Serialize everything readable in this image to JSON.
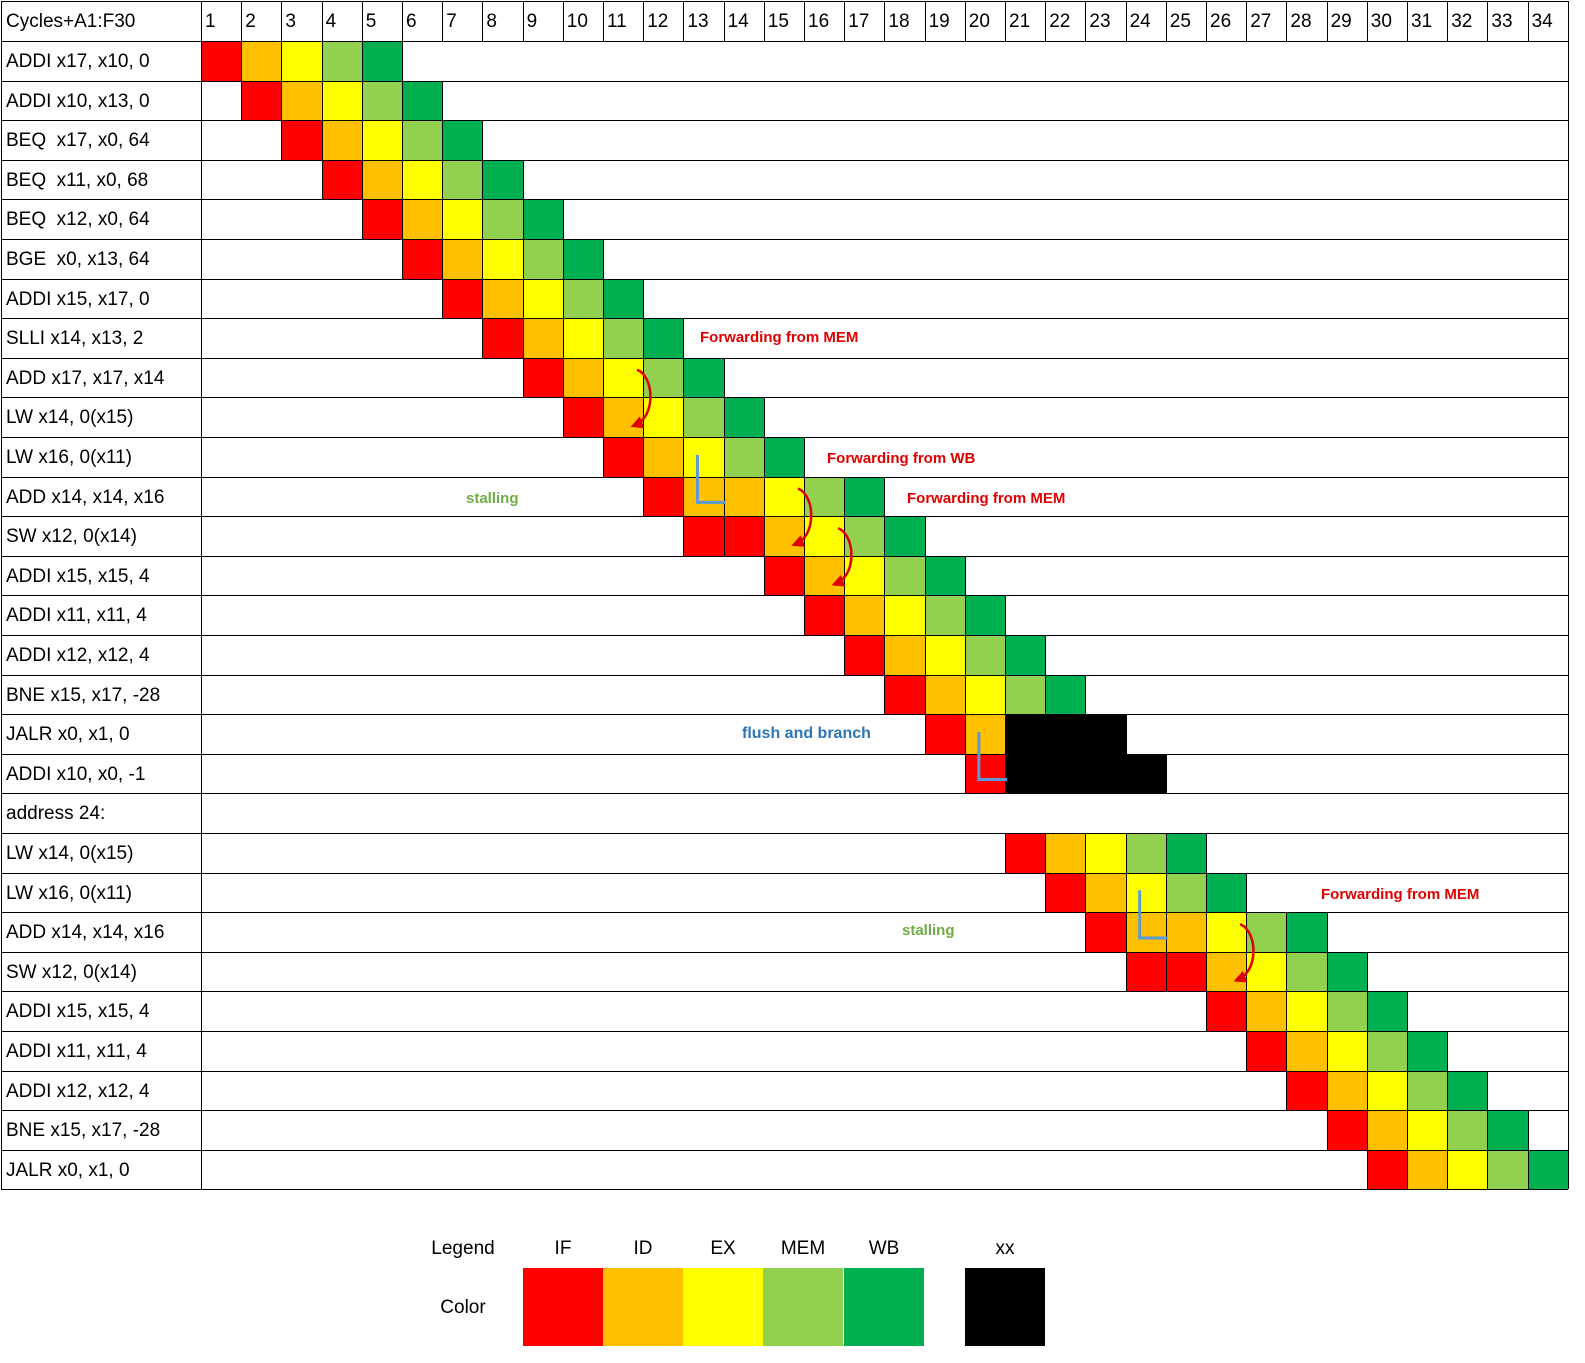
{
  "header_label": "Cycles+A1:F30",
  "cycles": [
    "1",
    "2",
    "3",
    "4",
    "5",
    "6",
    "7",
    "8",
    "9",
    "10",
    "11",
    "12",
    "13",
    "14",
    "15",
    "16",
    "17",
    "18",
    "19",
    "20",
    "21",
    "22",
    "23",
    "24",
    "25",
    "26",
    "27",
    "28",
    "29",
    "30",
    "31",
    "32",
    "33",
    "34"
  ],
  "colors": {
    "IF": "#ff0000",
    "ID": "#ffc000",
    "EX": "#ffff00",
    "MEM": "#92d050",
    "WB": "#00b050",
    "xx": "#000000",
    "forward_arrow": "#e00000",
    "stall_marker": "#5b9bd5",
    "stalling_text": "#70ad47",
    "flush_text": "#2e75b6"
  },
  "instructions": [
    {
      "label": "ADDI x17, x10, 0",
      "stages": [
        [
          1,
          "IF"
        ],
        [
          2,
          "ID"
        ],
        [
          3,
          "EX"
        ],
        [
          4,
          "MEM"
        ],
        [
          5,
          "WB"
        ]
      ]
    },
    {
      "label": "ADDI x10, x13, 0",
      "stages": [
        [
          2,
          "IF"
        ],
        [
          3,
          "ID"
        ],
        [
          4,
          "EX"
        ],
        [
          5,
          "MEM"
        ],
        [
          6,
          "WB"
        ]
      ]
    },
    {
      "label": "BEQ  x17, x0, 64",
      "stages": [
        [
          3,
          "IF"
        ],
        [
          4,
          "ID"
        ],
        [
          5,
          "EX"
        ],
        [
          6,
          "MEM"
        ],
        [
          7,
          "WB"
        ]
      ]
    },
    {
      "label": "BEQ  x11, x0, 68",
      "stages": [
        [
          4,
          "IF"
        ],
        [
          5,
          "ID"
        ],
        [
          6,
          "EX"
        ],
        [
          7,
          "MEM"
        ],
        [
          8,
          "WB"
        ]
      ]
    },
    {
      "label": "BEQ  x12, x0, 64",
      "stages": [
        [
          5,
          "IF"
        ],
        [
          6,
          "ID"
        ],
        [
          7,
          "EX"
        ],
        [
          8,
          "MEM"
        ],
        [
          9,
          "WB"
        ]
      ]
    },
    {
      "label": "BGE  x0, x13, 64",
      "stages": [
        [
          6,
          "IF"
        ],
        [
          7,
          "ID"
        ],
        [
          8,
          "EX"
        ],
        [
          9,
          "MEM"
        ],
        [
          10,
          "WB"
        ]
      ]
    },
    {
      "label": "ADDI x15, x17, 0",
      "stages": [
        [
          7,
          "IF"
        ],
        [
          8,
          "ID"
        ],
        [
          9,
          "EX"
        ],
        [
          10,
          "MEM"
        ],
        [
          11,
          "WB"
        ]
      ]
    },
    {
      "label": "SLLI x14, x13, 2",
      "stages": [
        [
          8,
          "IF"
        ],
        [
          9,
          "ID"
        ],
        [
          10,
          "EX"
        ],
        [
          11,
          "MEM"
        ],
        [
          12,
          "WB"
        ]
      ]
    },
    {
      "label": "ADD x17, x17, x14",
      "stages": [
        [
          9,
          "IF"
        ],
        [
          10,
          "ID"
        ],
        [
          11,
          "EX"
        ],
        [
          12,
          "MEM"
        ],
        [
          13,
          "WB"
        ]
      ]
    },
    {
      "label": "LW x14, 0(x15)",
      "stages": [
        [
          10,
          "IF"
        ],
        [
          11,
          "ID"
        ],
        [
          12,
          "EX"
        ],
        [
          13,
          "MEM"
        ],
        [
          14,
          "WB"
        ]
      ]
    },
    {
      "label": "LW x16, 0(x11)",
      "stages": [
        [
          11,
          "IF"
        ],
        [
          12,
          "ID"
        ],
        [
          13,
          "EX"
        ],
        [
          14,
          "MEM"
        ],
        [
          15,
          "WB"
        ]
      ]
    },
    {
      "label": "ADD x14, x14, x16",
      "stages": [
        [
          12,
          "IF"
        ],
        [
          13,
          "ID"
        ],
        [
          14,
          "ID"
        ],
        [
          15,
          "EX"
        ],
        [
          16,
          "MEM"
        ],
        [
          17,
          "WB"
        ]
      ]
    },
    {
      "label": "SW x12, 0(x14)",
      "stages": [
        [
          13,
          "IF"
        ],
        [
          14,
          "IF"
        ],
        [
          15,
          "ID"
        ],
        [
          16,
          "EX"
        ],
        [
          17,
          "MEM"
        ],
        [
          18,
          "WB"
        ]
      ]
    },
    {
      "label": "ADDI x15, x15, 4",
      "stages": [
        [
          15,
          "IF"
        ],
        [
          16,
          "ID"
        ],
        [
          17,
          "EX"
        ],
        [
          18,
          "MEM"
        ],
        [
          19,
          "WB"
        ]
      ]
    },
    {
      "label": "ADDI x11, x11, 4",
      "stages": [
        [
          16,
          "IF"
        ],
        [
          17,
          "ID"
        ],
        [
          18,
          "EX"
        ],
        [
          19,
          "MEM"
        ],
        [
          20,
          "WB"
        ]
      ]
    },
    {
      "label": "ADDI x12, x12, 4",
      "stages": [
        [
          17,
          "IF"
        ],
        [
          18,
          "ID"
        ],
        [
          19,
          "EX"
        ],
        [
          20,
          "MEM"
        ],
        [
          21,
          "WB"
        ]
      ]
    },
    {
      "label": "BNE x15, x17, -28",
      "stages": [
        [
          18,
          "IF"
        ],
        [
          19,
          "ID"
        ],
        [
          20,
          "EX"
        ],
        [
          21,
          "MEM"
        ],
        [
          22,
          "WB"
        ]
      ]
    },
    {
      "label": "JALR x0, x1, 0",
      "stages": [
        [
          19,
          "IF"
        ],
        [
          20,
          "ID"
        ],
        [
          21,
          "xx"
        ],
        [
          22,
          "xx"
        ],
        [
          23,
          "xx"
        ]
      ]
    },
    {
      "label": "ADDI x10, x0, -1",
      "stages": [
        [
          20,
          "IF"
        ],
        [
          21,
          "xx"
        ],
        [
          22,
          "xx"
        ],
        [
          23,
          "xx"
        ],
        [
          24,
          "xx"
        ]
      ]
    },
    {
      "label": "address 24:",
      "stages": []
    },
    {
      "label": "LW x14, 0(x15)",
      "stages": [
        [
          21,
          "IF"
        ],
        [
          22,
          "ID"
        ],
        [
          23,
          "EX"
        ],
        [
          24,
          "MEM"
        ],
        [
          25,
          "WB"
        ]
      ]
    },
    {
      "label": "LW x16, 0(x11)",
      "stages": [
        [
          22,
          "IF"
        ],
        [
          23,
          "ID"
        ],
        [
          24,
          "EX"
        ],
        [
          25,
          "MEM"
        ],
        [
          26,
          "WB"
        ]
      ]
    },
    {
      "label": "ADD x14, x14, x16",
      "stages": [
        [
          23,
          "IF"
        ],
        [
          24,
          "ID"
        ],
        [
          25,
          "ID"
        ],
        [
          26,
          "EX"
        ],
        [
          27,
          "MEM"
        ],
        [
          28,
          "WB"
        ]
      ]
    },
    {
      "label": "SW x12, 0(x14)",
      "stages": [
        [
          24,
          "IF"
        ],
        [
          25,
          "IF"
        ],
        [
          26,
          "ID"
        ],
        [
          27,
          "EX"
        ],
        [
          28,
          "MEM"
        ],
        [
          29,
          "WB"
        ]
      ]
    },
    {
      "label": "ADDI x15, x15, 4",
      "stages": [
        [
          26,
          "IF"
        ],
        [
          27,
          "ID"
        ],
        [
          28,
          "EX"
        ],
        [
          29,
          "MEM"
        ],
        [
          30,
          "WB"
        ]
      ]
    },
    {
      "label": "ADDI x11, x11, 4",
      "stages": [
        [
          27,
          "IF"
        ],
        [
          28,
          "ID"
        ],
        [
          29,
          "EX"
        ],
        [
          30,
          "MEM"
        ],
        [
          31,
          "WB"
        ]
      ]
    },
    {
      "label": "ADDI x12, x12, 4",
      "stages": [
        [
          28,
          "IF"
        ],
        [
          29,
          "ID"
        ],
        [
          30,
          "EX"
        ],
        [
          31,
          "MEM"
        ],
        [
          32,
          "WB"
        ]
      ]
    },
    {
      "label": "BNE x15, x17, -28",
      "stages": [
        [
          29,
          "IF"
        ],
        [
          30,
          "ID"
        ],
        [
          31,
          "EX"
        ],
        [
          32,
          "MEM"
        ],
        [
          33,
          "WB"
        ]
      ]
    },
    {
      "label": "JALR x0, x1, 0",
      "stages": [
        [
          30,
          "IF"
        ],
        [
          31,
          "ID"
        ],
        [
          32,
          "EX"
        ],
        [
          33,
          "MEM"
        ],
        [
          34,
          "WB"
        ]
      ]
    }
  ],
  "annotations": {
    "fwd_mem_1": "Forwarding from MEM",
    "fwd_wb": "Forwarding from WB",
    "fwd_mem_2": "Forwarding from MEM",
    "stalling_1": "stalling",
    "flush_branch": "flush and branch",
    "fwd_mem_3": "Forwarding from MEM",
    "stalling_2": "stalling"
  },
  "forward_arrows": [
    {
      "from_row": 8,
      "from_cycle": 11,
      "to_row": 9,
      "to_cycle": 11
    },
    {
      "from_row": 11,
      "from_cycle": 15,
      "to_row": 12,
      "to_cycle": 15
    },
    {
      "from_row": 12,
      "from_cycle": 16,
      "to_row": 13,
      "to_cycle": 16
    },
    {
      "from_row": 22,
      "from_cycle": 26,
      "to_row": 23,
      "to_cycle": 26
    }
  ],
  "stall_markers": [
    {
      "row": 11,
      "cycle": 13
    },
    {
      "row": 18,
      "cycle": 20
    },
    {
      "row": 22,
      "cycle": 24
    }
  ],
  "legend": {
    "title": "Legend",
    "color_label": "Color",
    "items": [
      {
        "label": "IF",
        "stage": "IF"
      },
      {
        "label": "ID",
        "stage": "ID"
      },
      {
        "label": "EX",
        "stage": "EX"
      },
      {
        "label": "MEM",
        "stage": "MEM"
      },
      {
        "label": "WB",
        "stage": "WB"
      },
      {
        "label": "xx",
        "stage": "xx"
      }
    ]
  }
}
